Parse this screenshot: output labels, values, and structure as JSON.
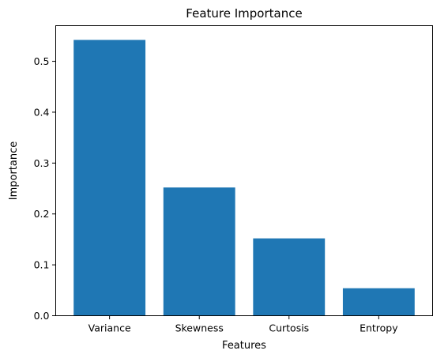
{
  "chart_data": {
    "type": "bar",
    "title": "Feature Importance",
    "xlabel": "Features",
    "ylabel": "Importance",
    "categories": [
      "Variance",
      "Skewness",
      "Curtosis",
      "Entropy"
    ],
    "values": [
      0.542,
      0.252,
      0.152,
      0.054
    ],
    "ylim": [
      0,
      0.57
    ],
    "yticks": [
      0.0,
      0.1,
      0.2,
      0.3,
      0.4,
      0.5
    ],
    "ytick_labels": [
      "0.0",
      "0.1",
      "0.2",
      "0.3",
      "0.4",
      "0.5"
    ],
    "bar_color": "#1f77b4",
    "grid": false,
    "legend": "none"
  }
}
